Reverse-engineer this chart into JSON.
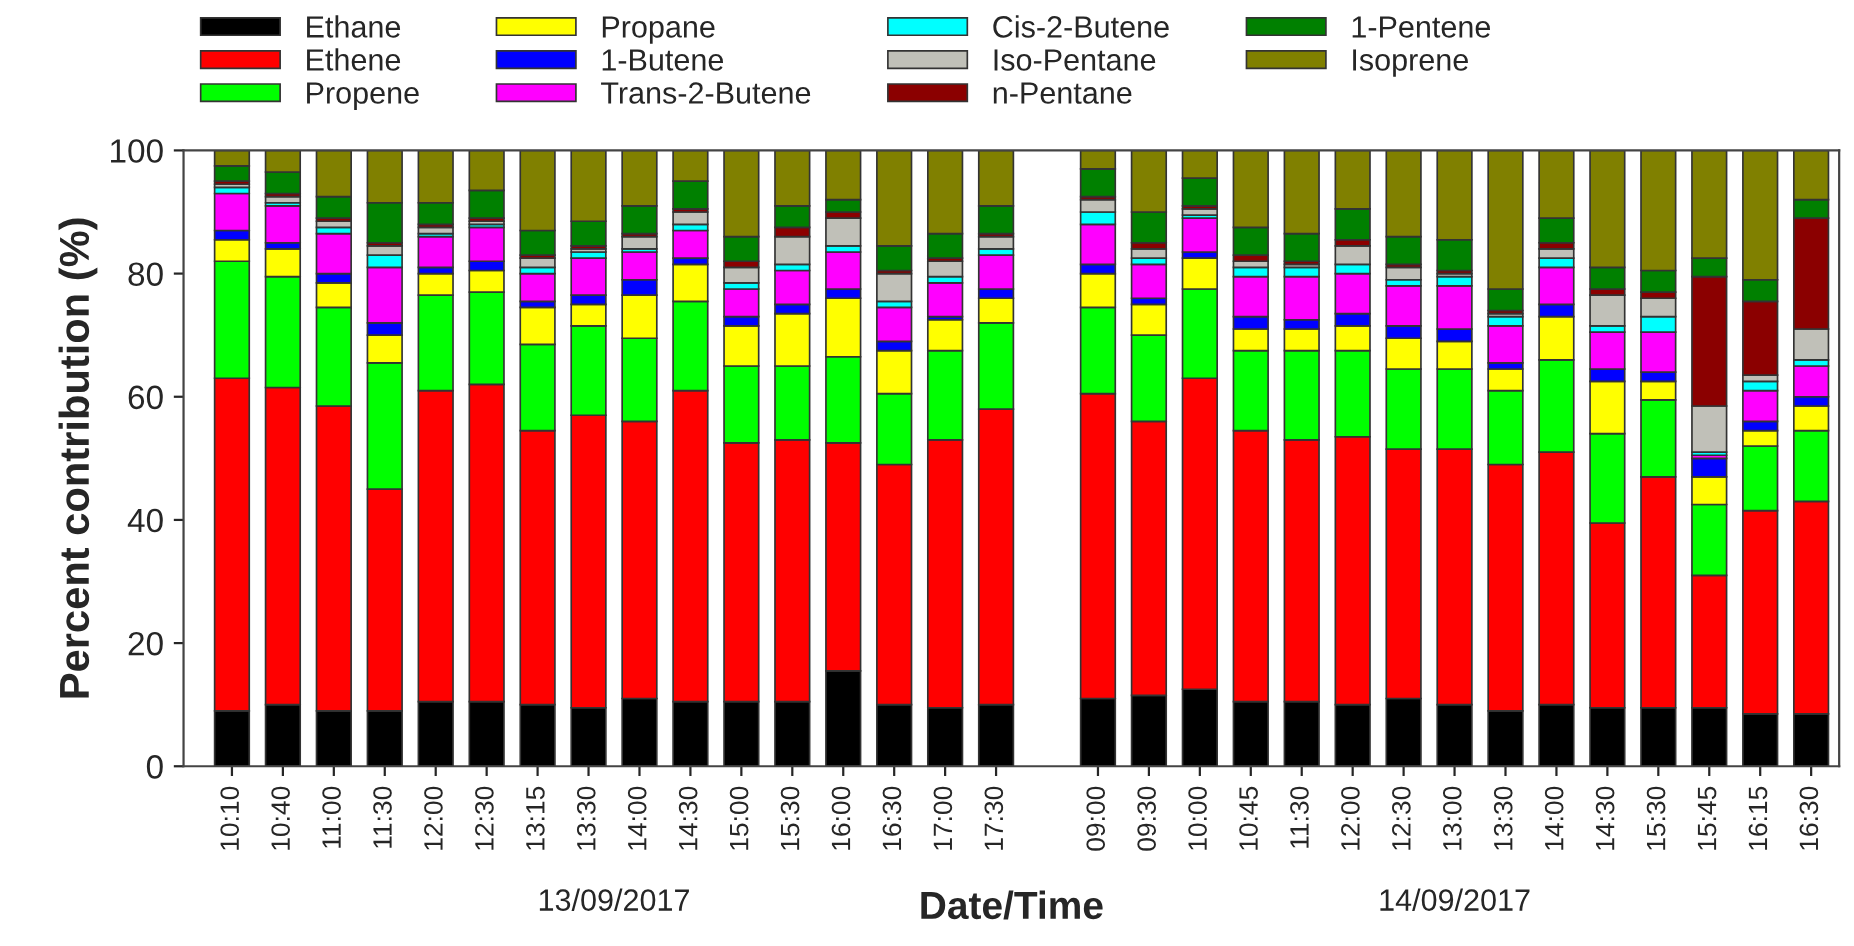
{
  "chart_data": {
    "type": "bar",
    "stacked": true,
    "xlabel": "Date/Time",
    "ylabel": "Percent contribution (%)",
    "categories": [
      "10:10",
      "10:40",
      "11:00",
      "11:30",
      "12:00",
      "12:30",
      "13:15",
      "13:30",
      "14:00",
      "14:30",
      "15:00",
      "15:30",
      "16:00",
      "16:30",
      "17:00",
      "17:30",
      null,
      "09:00",
      "09:30",
      "10:00",
      "10:45",
      "11:30",
      "12:00",
      "12:30",
      "13:00",
      "13:30",
      "14:00",
      "14:30",
      "15:30",
      "15:45",
      "16:15",
      "16:30"
    ],
    "series": [
      {
        "name": "Ethane",
        "color": "#000000",
        "values": [
          9,
          10,
          9,
          9,
          10.5,
          10.5,
          10,
          9.5,
          11,
          10.5,
          10.5,
          10.5,
          15.5,
          10,
          9.5,
          10,
          null,
          11,
          11.5,
          12.5,
          10.5,
          10.5,
          10,
          11,
          10,
          9,
          10,
          9.5,
          9.5,
          9.5,
          8.5,
          8.5
        ]
      },
      {
        "name": "Ethene",
        "color": "#ff0000",
        "values": [
          54,
          51.5,
          49.5,
          36,
          50.5,
          51.5,
          44.5,
          47.5,
          45,
          50.5,
          42,
          42.5,
          37,
          39,
          43.5,
          48,
          null,
          49.5,
          44.5,
          50.5,
          44,
          42.5,
          43.5,
          40.5,
          41.5,
          40,
          41,
          30,
          37.5,
          21.5,
          33,
          34.5
        ]
      },
      {
        "name": "Propene",
        "color": "#00ff00",
        "values": [
          19,
          18,
          16,
          20.5,
          15.5,
          15,
          14,
          14.5,
          13.5,
          14.5,
          12.5,
          12,
          14,
          11.5,
          14.5,
          14,
          null,
          14,
          14,
          14.5,
          13,
          14.5,
          14,
          13,
          13,
          12,
          15,
          14.5,
          12.5,
          11.5,
          10.5,
          11.5
        ]
      },
      {
        "name": "Propane",
        "color": "#ffff00",
        "values": [
          3.5,
          4.5,
          4,
          4.5,
          3.5,
          3.5,
          6,
          3.5,
          7,
          6,
          6.5,
          8.5,
          9.5,
          7,
          5,
          4,
          null,
          5.5,
          5,
          5,
          3.5,
          3.5,
          4,
          5,
          4.5,
          3.5,
          7,
          8.5,
          3,
          4.5,
          2.5,
          4
        ]
      },
      {
        "name": "1-Butene",
        "color": "#0000ff",
        "values": [
          1.5,
          1,
          1.5,
          2,
          1,
          1.5,
          1,
          1.5,
          2.5,
          1,
          1.5,
          1.5,
          1.5,
          1.5,
          0.5,
          1.5,
          null,
          1.5,
          1,
          1,
          2,
          1.5,
          2,
          2,
          2,
          1,
          2,
          2,
          1.5,
          3,
          1.5,
          1.5
        ]
      },
      {
        "name": "Trans-2-Butene",
        "color": "#ff00ff",
        "values": [
          6,
          6,
          6.5,
          9,
          5,
          5.5,
          4.5,
          6,
          4.5,
          4.5,
          4.5,
          5.5,
          6,
          5.5,
          5.5,
          5.5,
          null,
          6.5,
          5.5,
          5.5,
          6.5,
          7,
          6.5,
          6.5,
          7,
          6,
          6,
          6,
          6.5,
          0.5,
          5,
          5
        ]
      },
      {
        "name": "Cis-2-Butene",
        "color": "#00ffff",
        "values": [
          1,
          0.5,
          1,
          2,
          0.5,
          0.5,
          1,
          1,
          0.5,
          1,
          1,
          1,
          1,
          1,
          1,
          1,
          null,
          2,
          1,
          0.5,
          1.5,
          1.5,
          1.5,
          1,
          1.5,
          1.5,
          1.5,
          1,
          2.5,
          0.5,
          1.5,
          1
        ]
      },
      {
        "name": "Iso-Pentane",
        "color": "#c0c0b8",
        "values": [
          0.5,
          1,
          1,
          1.5,
          1,
          0.5,
          1.5,
          0.5,
          2,
          2,
          2.5,
          4.5,
          4.5,
          4.5,
          2.5,
          2,
          null,
          2,
          1.5,
          1,
          1,
          0.5,
          3,
          2,
          0.5,
          0.5,
          1.5,
          5,
          3,
          7.5,
          1,
          5
        ]
      },
      {
        "name": "n-Pentane",
        "color": "#8b0000",
        "values": [
          0.5,
          0.5,
          0.5,
          0.5,
          0.5,
          0.5,
          0.5,
          0.5,
          0.5,
          0.5,
          1,
          1.5,
          1,
          0.5,
          0.5,
          0.5,
          null,
          0.5,
          1,
          0.5,
          1,
          0.5,
          1,
          0.5,
          0.5,
          0.5,
          1,
          1,
          1,
          21,
          12,
          18
        ]
      },
      {
        "name": "1-Pentene",
        "color": "#008000",
        "values": [
          2.5,
          3.5,
          3.5,
          6.5,
          3.5,
          4.5,
          4,
          4,
          4.5,
          4.5,
          4,
          3.5,
          2,
          4,
          4,
          4.5,
          null,
          4.5,
          5,
          4.5,
          4.5,
          4.5,
          5,
          4.5,
          5,
          3.5,
          4,
          3.5,
          3.5,
          3,
          3.5,
          3
        ]
      },
      {
        "name": "Isoprene",
        "color": "#808000",
        "values": [
          2.5,
          3.5,
          7.5,
          8.5,
          8.5,
          6.5,
          13,
          11.5,
          9,
          5,
          14,
          9,
          8,
          15.5,
          13.5,
          9,
          null,
          3,
          10,
          4.5,
          12.5,
          13.5,
          9.5,
          14,
          14.5,
          22.5,
          11,
          19,
          19.5,
          17.5,
          21,
          8
        ]
      }
    ],
    "ylim": [
      0,
      100
    ],
    "yticks": [
      0,
      20,
      40,
      60,
      80,
      100
    ],
    "grid": false,
    "legend": "top",
    "annotations": [
      "13/09/2017",
      "14/09/2017"
    ]
  }
}
